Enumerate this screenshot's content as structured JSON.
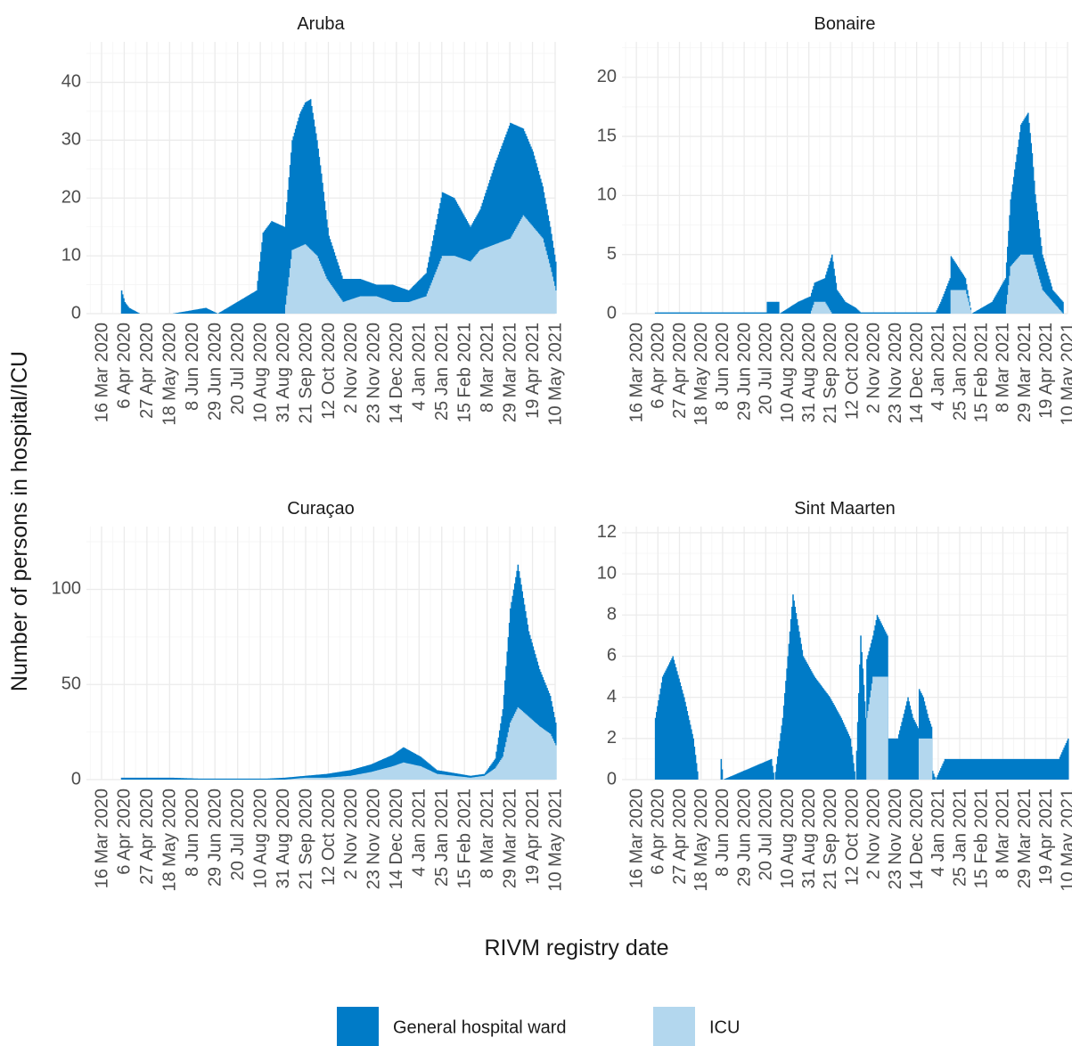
{
  "colors": {
    "ward": "#007bc7",
    "icu": "#b3d7ee"
  },
  "x_label": "RIVM registry date",
  "y_label": "Number of persons in hospital/ICU",
  "legend": [
    {
      "label": "General hospital ward",
      "color": "#007bc7"
    },
    {
      "label": "ICU",
      "color": "#b3d7ee"
    }
  ],
  "chart_data": {
    "type": "area",
    "title": "",
    "xlabel": "RIVM registry date",
    "ylabel": "Number of persons in hospital/ICU",
    "x_ticks": [
      "16 Mar 2020",
      "6 Apr 2020",
      "27 Apr 2020",
      "18 May 2020",
      "8 Jun 2020",
      "29 Jun 2020",
      "20 Jul 2020",
      "10 Aug 2020",
      "31 Aug 2020",
      "21 Sep 2020",
      "12 Oct 2020",
      "2 Nov 2020",
      "23 Nov 2020",
      "14 Dec 2020",
      "4 Jan 2021",
      "25 Jan 2021",
      "15 Feb 2021",
      "8 Mar 2021",
      "29 Mar 2021",
      "19 Apr 2021",
      "10 May 2021"
    ],
    "xlim": [
      "2020-03-02",
      "2021-05-10"
    ],
    "stacked": true,
    "legend_position": "bottom",
    "grid": true,
    "panels": [
      {
        "name": "Aruba",
        "ylim": [
          0,
          47
        ],
        "yticks": [
          0,
          10,
          20,
          30,
          40
        ],
        "series": [
          {
            "name": "General hospital ward",
            "points": [
              [
                "2020-04-02",
                0
              ],
              [
                "2020-04-03",
                4
              ],
              [
                "2020-04-06",
                2
              ],
              [
                "2020-04-10",
                1
              ],
              [
                "2020-04-20",
                0
              ],
              [
                "2020-05-01",
                0
              ],
              [
                "2020-05-20",
                0
              ],
              [
                "2020-06-20",
                1
              ],
              [
                "2020-07-01",
                0
              ],
              [
                "2020-08-06",
                4
              ],
              [
                "2020-08-12",
                14
              ],
              [
                "2020-08-20",
                16
              ],
              [
                "2020-09-01",
                15
              ],
              [
                "2020-09-15",
                23
              ],
              [
                "2020-09-25",
                26
              ],
              [
                "2020-10-05",
                16
              ],
              [
                "2020-10-12",
                8
              ],
              [
                "2020-10-25",
                4
              ],
              [
                "2020-11-10",
                3
              ],
              [
                "2020-11-25",
                2
              ],
              [
                "2020-12-10",
                3
              ],
              [
                "2020-12-25",
                2
              ],
              [
                "2021-01-10",
                4
              ],
              [
                "2021-01-25",
                11
              ],
              [
                "2021-02-05",
                10
              ],
              [
                "2021-02-20",
                6
              ],
              [
                "2021-03-01",
                7
              ],
              [
                "2021-03-15",
                14
              ],
              [
                "2021-03-29",
                20
              ],
              [
                "2021-04-10",
                15
              ],
              [
                "2021-04-19",
                13
              ],
              [
                "2021-04-28",
                9
              ],
              [
                "2021-05-05",
                7
              ],
              [
                "2021-05-10",
                5
              ]
            ]
          },
          {
            "name": "ICU",
            "points": [
              [
                "2020-04-02",
                0
              ],
              [
                "2020-08-06",
                0
              ],
              [
                "2020-08-12",
                0
              ],
              [
                "2020-09-01",
                0
              ],
              [
                "2020-09-08",
                11
              ],
              [
                "2020-09-20",
                12
              ],
              [
                "2020-10-01",
                10
              ],
              [
                "2020-10-10",
                6
              ],
              [
                "2020-10-25",
                2
              ],
              [
                "2020-11-10",
                3
              ],
              [
                "2020-11-25",
                3
              ],
              [
                "2020-12-10",
                2
              ],
              [
                "2020-12-25",
                2
              ],
              [
                "2021-01-10",
                3
              ],
              [
                "2021-01-25",
                10
              ],
              [
                "2021-02-05",
                10
              ],
              [
                "2021-02-20",
                9
              ],
              [
                "2021-03-01",
                11
              ],
              [
                "2021-03-15",
                12
              ],
              [
                "2021-03-29",
                13
              ],
              [
                "2021-04-10",
                17
              ],
              [
                "2021-04-19",
                15
              ],
              [
                "2021-04-28",
                13
              ],
              [
                "2021-05-05",
                8
              ],
              [
                "2021-05-10",
                4
              ]
            ]
          }
        ]
      },
      {
        "name": "Bonaire",
        "ylim": [
          0,
          23
        ],
        "yticks": [
          0,
          5,
          10,
          15,
          20
        ],
        "series": [
          {
            "name": "General hospital ward",
            "points": [
              [
                "2020-04-02",
                0
              ],
              [
                "2020-04-03",
                0.1
              ],
              [
                "2020-07-20",
                0.1
              ],
              [
                "2020-07-21",
                1
              ],
              [
                "2020-08-01",
                1
              ],
              [
                "2020-08-02",
                0
              ],
              [
                "2020-08-20",
                1
              ],
              [
                "2020-09-15",
                2
              ],
              [
                "2020-09-22",
                5
              ],
              [
                "2020-09-27",
                2
              ],
              [
                "2020-10-05",
                1
              ],
              [
                "2020-10-15",
                0.5
              ],
              [
                "2020-10-20",
                0.1
              ],
              [
                "2021-01-01",
                0.1
              ],
              [
                "2021-01-06",
                1
              ],
              [
                "2021-01-15",
                3
              ],
              [
                "2021-01-30",
                1
              ],
              [
                "2021-02-05",
                0
              ],
              [
                "2021-02-25",
                1
              ],
              [
                "2021-03-10",
                3
              ],
              [
                "2021-03-25",
                11
              ],
              [
                "2021-04-01",
                12
              ],
              [
                "2021-04-08",
                6
              ],
              [
                "2021-04-15",
                3
              ],
              [
                "2021-04-25",
                1
              ],
              [
                "2021-05-05",
                1
              ],
              [
                "2021-05-06",
                0
              ],
              [
                "2021-05-10",
                0
              ]
            ]
          },
          {
            "name": "ICU",
            "points": [
              [
                "2020-04-02",
                0
              ],
              [
                "2020-09-01",
                0
              ],
              [
                "2020-09-05",
                1
              ],
              [
                "2020-09-15",
                1
              ],
              [
                "2020-09-22",
                0
              ],
              [
                "2020-10-20",
                0
              ],
              [
                "2021-01-15",
                0
              ],
              [
                "2021-01-16",
                2
              ],
              [
                "2021-01-30",
                2
              ],
              [
                "2021-02-05",
                0
              ],
              [
                "2021-03-10",
                0
              ],
              [
                "2021-03-15",
                4
              ],
              [
                "2021-03-25",
                5
              ],
              [
                "2021-04-05",
                5
              ],
              [
                "2021-04-15",
                2
              ],
              [
                "2021-04-25",
                1
              ],
              [
                "2021-05-05",
                0
              ],
              [
                "2021-05-10",
                0
              ]
            ]
          }
        ]
      },
      {
        "name": "Curaçao",
        "ylim": [
          0,
          133
        ],
        "yticks": [
          0,
          50,
          100
        ],
        "series": [
          {
            "name": "General hospital ward",
            "points": [
              [
                "2020-04-02",
                0
              ],
              [
                "2020-04-03",
                1
              ],
              [
                "2020-05-20",
                1
              ],
              [
                "2020-06-15",
                0.5
              ],
              [
                "2020-08-15",
                0.5
              ],
              [
                "2020-09-01",
                1
              ],
              [
                "2020-09-20",
                1
              ],
              [
                "2020-10-10",
                2
              ],
              [
                "2020-11-01",
                3
              ],
              [
                "2020-11-20",
                4
              ],
              [
                "2020-12-10",
                6
              ],
              [
                "2020-12-20",
                8
              ],
              [
                "2021-01-05",
                5
              ],
              [
                "2021-01-20",
                2
              ],
              [
                "2021-02-20",
                1
              ],
              [
                "2021-03-05",
                1
              ],
              [
                "2021-03-15",
                5
              ],
              [
                "2021-03-22",
                25
              ],
              [
                "2021-03-29",
                60
              ],
              [
                "2021-04-05",
                75
              ],
              [
                "2021-04-15",
                45
              ],
              [
                "2021-04-25",
                30
              ],
              [
                "2021-05-05",
                20
              ],
              [
                "2021-05-10",
                12
              ]
            ]
          },
          {
            "name": "ICU",
            "points": [
              [
                "2020-04-02",
                0
              ],
              [
                "2020-09-01",
                0
              ],
              [
                "2020-09-20",
                1
              ],
              [
                "2020-10-10",
                1
              ],
              [
                "2020-11-01",
                2
              ],
              [
                "2020-11-20",
                4
              ],
              [
                "2020-12-10",
                7
              ],
              [
                "2020-12-20",
                9
              ],
              [
                "2021-01-05",
                7
              ],
              [
                "2021-01-20",
                3
              ],
              [
                "2021-02-20",
                1
              ],
              [
                "2021-03-05",
                2
              ],
              [
                "2021-03-15",
                6
              ],
              [
                "2021-03-22",
                12
              ],
              [
                "2021-03-29",
                30
              ],
              [
                "2021-04-05",
                38
              ],
              [
                "2021-04-15",
                33
              ],
              [
                "2021-04-25",
                28
              ],
              [
                "2021-05-05",
                24
              ],
              [
                "2021-05-10",
                18
              ]
            ]
          }
        ]
      },
      {
        "name": "Sint Maarten",
        "ylim": [
          0,
          12.3
        ],
        "yticks": [
          0,
          2,
          4,
          6,
          8,
          10,
          12
        ],
        "series": [
          {
            "name": "General hospital ward",
            "points": [
              [
                "2020-04-02",
                0
              ],
              [
                "2020-04-03",
                3
              ],
              [
                "2020-04-10",
                5
              ],
              [
                "2020-04-20",
                6
              ],
              [
                "2020-05-01",
                4
              ],
              [
                "2020-05-10",
                2
              ],
              [
                "2020-05-15",
                0
              ],
              [
                "2020-06-05",
                0
              ],
              [
                "2020-06-06",
                1
              ],
              [
                "2020-06-08",
                0
              ],
              [
                "2020-07-25",
                1
              ],
              [
                "2020-07-28",
                0
              ],
              [
                "2020-08-05",
                3
              ],
              [
                "2020-08-15",
                9
              ],
              [
                "2020-08-25",
                6
              ],
              [
                "2020-09-05",
                5
              ],
              [
                "2020-09-20",
                4
              ],
              [
                "2020-10-01",
                3
              ],
              [
                "2020-10-10",
                2
              ],
              [
                "2020-10-15",
                0
              ],
              [
                "2020-10-20",
                7
              ],
              [
                "2020-10-25",
                3
              ],
              [
                "2020-11-01",
                2
              ],
              [
                "2020-11-05",
                3
              ],
              [
                "2020-11-15",
                2
              ],
              [
                "2020-11-25",
                2
              ],
              [
                "2020-12-05",
                4
              ],
              [
                "2020-12-10",
                3
              ],
              [
                "2020-12-20",
                2
              ],
              [
                "2020-12-25",
                1
              ],
              [
                "2021-01-01",
                0
              ],
              [
                "2021-01-10",
                1
              ],
              [
                "2021-02-01",
                1
              ],
              [
                "2021-03-01",
                1
              ],
              [
                "2021-04-01",
                1
              ],
              [
                "2021-05-01",
                1
              ],
              [
                "2021-05-10",
                2
              ]
            ]
          },
          {
            "name": "ICU",
            "points": [
              [
                "2020-04-02",
                0
              ],
              [
                "2020-10-25",
                0
              ],
              [
                "2020-10-26",
                3
              ],
              [
                "2020-11-01",
                5
              ],
              [
                "2020-11-15",
                5
              ],
              [
                "2020-11-16",
                0
              ],
              [
                "2020-12-15",
                0
              ],
              [
                "2020-12-16",
                2
              ],
              [
                "2020-12-28",
                2
              ],
              [
                "2020-12-29",
                0
              ],
              [
                "2021-05-10",
                0
              ]
            ]
          }
        ]
      }
    ]
  }
}
